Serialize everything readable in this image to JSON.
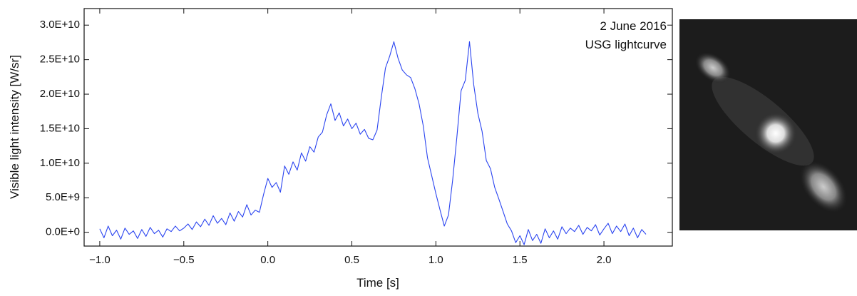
{
  "chart_data": {
    "type": "line",
    "annotations": [
      "2 June 2016",
      "USG lightcurve"
    ],
    "x_label": "Time [s]",
    "y_label": "Visible light intensity [W/sr]",
    "color": "#2a44f0",
    "xlim": [
      -1.093,
      2.407
    ],
    "ylim": [
      -2000000000.0,
      32400000000.0
    ],
    "xticks": [
      {
        "value": -1.0,
        "label": "−1.0"
      },
      {
        "value": -0.5,
        "label": "−0.5"
      },
      {
        "value": 0,
        "label": "0.0"
      },
      0.5,
      {
        "value": 1,
        "label": "1.0"
      },
      1.5,
      {
        "value": 2,
        "label": "2.0"
      }
    ],
    "yticks": [
      {
        "value": 0,
        "label": "0.0E+0"
      },
      {
        "value": 5000000000.0,
        "label": "5.0E+9"
      },
      {
        "value": 10000000000.0,
        "label": "1.0E+10"
      },
      {
        "value": 15000000000.0,
        "label": "1.5E+10"
      },
      {
        "value": 20000000000.0,
        "label": "2.0E+10"
      },
      {
        "value": 25000000000.0,
        "label": "2.5E+10"
      },
      {
        "value": 30000000000.0,
        "label": "3.0E+10"
      }
    ],
    "x": [
      -1.0,
      -0.975,
      -0.95,
      -0.925,
      -0.9,
      -0.875,
      -0.85,
      -0.825,
      -0.8,
      -0.775,
      -0.75,
      -0.725,
      -0.7,
      -0.675,
      -0.65,
      -0.625,
      -0.6,
      -0.575,
      -0.55,
      -0.525,
      -0.5,
      -0.475,
      -0.45,
      -0.425,
      -0.4,
      -0.375,
      -0.35,
      -0.325,
      -0.3,
      -0.275,
      -0.25,
      -0.225,
      -0.2,
      -0.175,
      -0.15,
      -0.125,
      -0.1,
      -0.075,
      -0.05,
      -0.025,
      0.0,
      0.025,
      0.05,
      0.075,
      0.1,
      0.125,
      0.15,
      0.175,
      0.2,
      0.225,
      0.25,
      0.275,
      0.3,
      0.325,
      0.35,
      0.375,
      0.4,
      0.425,
      0.45,
      0.475,
      0.5,
      0.525,
      0.55,
      0.575,
      0.6,
      0.625,
      0.65,
      0.675,
      0.7,
      0.725,
      0.75,
      0.775,
      0.8,
      0.825,
      0.85,
      0.875,
      0.9,
      0.925,
      0.95,
      0.975,
      1.0,
      1.025,
      1.05,
      1.075,
      1.1,
      1.125,
      1.15,
      1.175,
      1.2,
      1.225,
      1.25,
      1.275,
      1.3,
      1.325,
      1.35,
      1.375,
      1.4,
      1.425,
      1.45,
      1.475,
      1.5,
      1.525,
      1.55,
      1.575,
      1.6,
      1.625,
      1.65,
      1.675,
      1.7,
      1.725,
      1.75,
      1.775,
      1.8,
      1.825,
      1.85,
      1.875,
      1.9,
      1.925,
      1.95,
      1.975,
      2.0,
      2.025,
      2.05,
      2.075,
      2.1,
      2.125,
      2.15,
      2.175,
      2.2,
      2.225,
      2.25
    ],
    "values": [
      500000000.0,
      -800000000.0,
      900000000.0,
      -500000000.0,
      300000000.0,
      -1000000000.0,
      600000000.0,
      -300000000.0,
      200000000.0,
      -900000000.0,
      400000000.0,
      -600000000.0,
      700000000.0,
      -200000000.0,
      300000000.0,
      -700000000.0,
      500000000.0,
      100000000.0,
      900000000.0,
      200000000.0,
      600000000.0,
      1200000000.0,
      400000000.0,
      1500000000.0,
      800000000.0,
      1900000000.0,
      1000000000.0,
      2400000000.0,
      1300000000.0,
      2000000000.0,
      1100000000.0,
      2800000000.0,
      1600000000.0,
      3000000000.0,
      2200000000.0,
      4000000000.0,
      2500000000.0,
      3200000000.0,
      2900000000.0,
      5500000000.0,
      7800000000.0,
      6500000000.0,
      7200000000.0,
      5800000000.0,
      9600000000.0,
      8400000000.0,
      10200000000.0,
      9000000000.0,
      11500000000.0,
      10300000000.0,
      12400000000.0,
      11600000000.0,
      13800000000.0,
      14500000000.0,
      17000000000.0,
      18600000000.0,
      16200000000.0,
      17300000000.0,
      15400000000.0,
      16400000000.0,
      15000000000.0,
      15800000000.0,
      14200000000.0,
      14900000000.0,
      13600000000.0,
      13400000000.0,
      14800000000.0,
      19500000000.0,
      23800000000.0,
      25500000000.0,
      27600000000.0,
      25200000000.0,
      23500000000.0,
      22800000000.0,
      22400000000.0,
      20800000000.0,
      18600000000.0,
      15400000000.0,
      10800000000.0,
      8200000000.0,
      5600000000.0,
      3200000000.0,
      900000000.0,
      2500000000.0,
      7600000000.0,
      13800000000.0,
      20500000000.0,
      22000000000.0,
      27600000000.0,
      21400000000.0,
      17200000000.0,
      14600000000.0,
      10400000000.0,
      9200000000.0,
      6500000000.0,
      4800000000.0,
      3000000000.0,
      1200000000.0,
      200000000.0,
      -1500000000.0,
      -500000000.0,
      -1800000000.0,
      400000000.0,
      -1200000000.0,
      -300000000.0,
      -1600000000.0,
      500000000.0,
      -800000000.0,
      200000000.0,
      -1000000000.0,
      800000000.0,
      -200000000.0,
      600000000.0,
      100000000.0,
      1000000000.0,
      -300000000.0,
      700000000.0,
      200000000.0,
      1100000000.0,
      -400000000.0,
      500000000.0,
      1300000000.0,
      -200000000.0,
      900000000.0,
      100000000.0,
      1200000000.0,
      -500000000.0,
      600000000.0,
      -800000000.0,
      400000000.0,
      -300000000.0
    ]
  }
}
